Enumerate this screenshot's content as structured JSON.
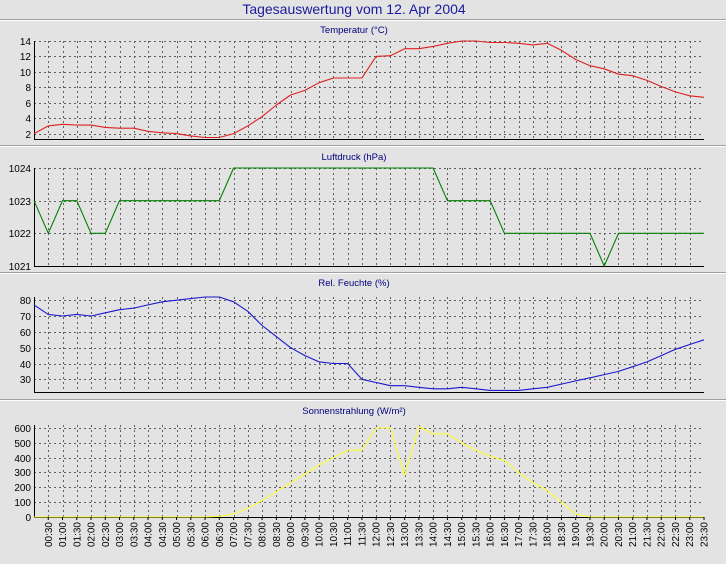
{
  "page_title": "Tagesauswertung vom 12. Apr 2004",
  "x_labels": [
    "00:30",
    "01:00",
    "01:30",
    "02:00",
    "02:30",
    "03:00",
    "03:30",
    "04:00",
    "04:30",
    "05:00",
    "05:30",
    "06:00",
    "06:30",
    "07:00",
    "07:30",
    "08:00",
    "08:30",
    "09:00",
    "09:30",
    "10:00",
    "10:30",
    "11:00",
    "11:30",
    "12:00",
    "12:30",
    "13:00",
    "13:30",
    "14:00",
    "14:30",
    "15:00",
    "15:30",
    "16:00",
    "16:30",
    "17:00",
    "17:30",
    "18:00",
    "18:30",
    "19:00",
    "19:30",
    "20:00",
    "20:30",
    "21:00",
    "21:30",
    "22:00",
    "22:30",
    "23:00",
    "23:30"
  ],
  "chart_data": [
    {
      "type": "line",
      "title": "Temperatur (°C)",
      "ylim": [
        1.3,
        14
      ],
      "yticks": [
        2,
        4,
        6,
        8,
        10,
        12,
        14
      ],
      "grid": true,
      "color": "#e02020",
      "x": [
        "00:00",
        "00:30",
        "01:00",
        "01:30",
        "02:00",
        "02:30",
        "03:00",
        "03:30",
        "04:00",
        "04:30",
        "05:00",
        "05:30",
        "06:00",
        "06:30",
        "07:00",
        "07:30",
        "08:00",
        "08:30",
        "09:00",
        "09:30",
        "10:00",
        "10:30",
        "11:00",
        "11:30",
        "12:00",
        "12:30",
        "13:00",
        "13:30",
        "14:00",
        "14:30",
        "15:00",
        "15:30",
        "16:00",
        "16:30",
        "17:00",
        "17:30",
        "18:00",
        "18:30",
        "19:00",
        "19:30",
        "20:00",
        "20:30",
        "21:00",
        "21:30",
        "22:00",
        "22:30",
        "23:00",
        "23:30"
      ],
      "values": [
        2.0,
        3.0,
        3.2,
        3.1,
        3.1,
        2.8,
        2.7,
        2.7,
        2.3,
        2.1,
        2.0,
        1.7,
        1.5,
        1.5,
        2.0,
        3.0,
        4.2,
        5.7,
        7.0,
        7.6,
        8.6,
        9.2,
        9.2,
        9.2,
        12.0,
        12.1,
        13.0,
        13.0,
        13.3,
        13.7,
        14.0,
        14.0,
        13.8,
        13.8,
        13.7,
        13.5,
        13.7,
        12.8,
        11.6,
        10.8,
        10.4,
        9.7,
        9.5,
        8.9,
        8.1,
        7.4,
        6.9,
        6.7
      ]
    },
    {
      "type": "line",
      "title": "Luftdruck (hPa)",
      "ylim": [
        1021,
        1024
      ],
      "yticks": [
        1021,
        1022,
        1023,
        1024
      ],
      "grid": true,
      "color": "#008000",
      "x": [
        "00:00",
        "00:30",
        "01:00",
        "01:30",
        "02:00",
        "02:30",
        "03:00",
        "03:30",
        "04:00",
        "04:30",
        "05:00",
        "05:30",
        "06:00",
        "06:30",
        "07:00",
        "07:30",
        "08:00",
        "08:30",
        "09:00",
        "09:30",
        "10:00",
        "10:30",
        "11:00",
        "11:30",
        "12:00",
        "12:30",
        "13:00",
        "13:30",
        "14:00",
        "14:30",
        "15:00",
        "15:30",
        "16:00",
        "16:30",
        "17:00",
        "17:30",
        "18:00",
        "18:30",
        "19:00",
        "19:30",
        "20:00",
        "20:30",
        "21:00",
        "21:30",
        "22:00",
        "22:30",
        "23:00",
        "23:30"
      ],
      "values": [
        1023,
        1022,
        1023,
        1023,
        1022,
        1022,
        1023,
        1023,
        1023,
        1023,
        1023,
        1023,
        1023,
        1023,
        1024,
        1024,
        1024,
        1024,
        1024,
        1024,
        1024,
        1024,
        1024,
        1024,
        1024,
        1024,
        1024,
        1024,
        1024,
        1023,
        1023,
        1023,
        1023,
        1022,
        1022,
        1022,
        1022,
        1022,
        1022,
        1022,
        1021,
        1022,
        1022,
        1022,
        1022,
        1022,
        1022,
        1022
      ]
    },
    {
      "type": "line",
      "title": "Rel. Feuchte (%)",
      "ylim": [
        22,
        82
      ],
      "yticks": [
        30,
        40,
        50,
        60,
        70,
        80
      ],
      "grid": true,
      "color": "#1a1ad0",
      "x": [
        "00:00",
        "00:30",
        "01:00",
        "01:30",
        "02:00",
        "02:30",
        "03:00",
        "03:30",
        "04:00",
        "04:30",
        "05:00",
        "05:30",
        "06:00",
        "06:30",
        "07:00",
        "07:30",
        "08:00",
        "08:30",
        "09:00",
        "09:30",
        "10:00",
        "10:30",
        "11:00",
        "11:30",
        "12:00",
        "12:30",
        "13:00",
        "13:30",
        "14:00",
        "14:30",
        "15:00",
        "15:30",
        "16:00",
        "16:30",
        "17:00",
        "17:30",
        "18:00",
        "18:30",
        "19:00",
        "19:30",
        "20:00",
        "20:30",
        "21:00",
        "21:30",
        "22:00",
        "22:30",
        "23:00",
        "23:30"
      ],
      "values": [
        77,
        71,
        70,
        71,
        70,
        72,
        74,
        75,
        77,
        79,
        80,
        81,
        82,
        82,
        79,
        73,
        64,
        57,
        50,
        45,
        41,
        40,
        40,
        30,
        28,
        26,
        26,
        25,
        24,
        24,
        25,
        24,
        23,
        23,
        23,
        24,
        25,
        27,
        29,
        31,
        33,
        35,
        38,
        41,
        45,
        49,
        52,
        55
      ]
    },
    {
      "type": "line",
      "title": "Sonnenstrahlung (W/m²)",
      "ylim": [
        0,
        620
      ],
      "yticks": [
        0,
        100,
        200,
        300,
        400,
        500,
        600
      ],
      "grid": true,
      "color": "#ffff33",
      "x": [
        "00:00",
        "00:30",
        "01:00",
        "01:30",
        "02:00",
        "02:30",
        "03:00",
        "03:30",
        "04:00",
        "04:30",
        "05:00",
        "05:30",
        "06:00",
        "06:30",
        "07:00",
        "07:30",
        "08:00",
        "08:30",
        "09:00",
        "09:30",
        "10:00",
        "10:30",
        "11:00",
        "11:30",
        "12:00",
        "12:30",
        "13:00",
        "13:30",
        "14:00",
        "14:30",
        "15:00",
        "15:30",
        "16:00",
        "16:30",
        "17:00",
        "17:30",
        "18:00",
        "18:30",
        "19:00",
        "19:30",
        "20:00",
        "20:30",
        "21:00",
        "21:30",
        "22:00",
        "22:30",
        "23:00",
        "23:30"
      ],
      "values": [
        0,
        0,
        0,
        0,
        0,
        0,
        0,
        0,
        0,
        0,
        0,
        0,
        0,
        5,
        20,
        60,
        110,
        170,
        230,
        290,
        350,
        400,
        450,
        450,
        600,
        600,
        280,
        610,
        560,
        560,
        500,
        450,
        410,
        380,
        300,
        230,
        180,
        100,
        20,
        0,
        0,
        0,
        0,
        0,
        0,
        0,
        0,
        0
      ]
    }
  ]
}
